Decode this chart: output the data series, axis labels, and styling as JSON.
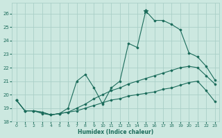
{
  "xlabel": "Humidex (Indice chaleur)",
  "bg_color": "#cce8e0",
  "grid_color": "#aacfc8",
  "line_color": "#1a6b5a",
  "xlim": [
    -0.5,
    23.5
  ],
  "ylim": [
    18,
    26.8
  ],
  "yticks": [
    18,
    19,
    20,
    21,
    22,
    23,
    24,
    25,
    26
  ],
  "xticks": [
    0,
    1,
    2,
    3,
    4,
    5,
    6,
    7,
    8,
    9,
    10,
    11,
    12,
    13,
    14,
    15,
    16,
    17,
    18,
    19,
    20,
    21,
    22,
    23
  ],
  "s1_x": [
    0,
    1,
    2,
    3,
    4,
    5,
    6,
    7,
    8,
    9,
    10,
    11,
    12,
    13,
    14,
    15,
    16,
    17,
    18,
    19,
    20,
    21,
    22,
    23
  ],
  "s1_y": [
    19.6,
    18.8,
    18.8,
    18.7,
    18.5,
    18.6,
    18.7,
    18.8,
    19.0,
    19.2,
    19.4,
    19.6,
    19.7,
    19.9,
    20.0,
    20.1,
    20.2,
    20.4,
    20.5,
    20.7,
    20.9,
    21.0,
    20.3,
    19.5
  ],
  "s2_x": [
    0,
    1,
    2,
    3,
    4,
    5,
    6,
    7,
    8,
    9,
    10,
    11,
    12,
    13,
    14,
    15,
    16,
    17,
    18,
    19,
    20,
    21,
    22,
    23
  ],
  "s2_y": [
    19.6,
    18.8,
    18.8,
    18.7,
    18.5,
    18.6,
    18.7,
    19.0,
    19.3,
    19.7,
    20.0,
    20.3,
    20.5,
    20.8,
    21.0,
    21.2,
    21.4,
    21.6,
    21.8,
    22.0,
    22.1,
    22.0,
    21.4,
    20.8
  ],
  "s3_x": [
    0,
    1,
    2,
    3,
    4,
    5,
    6,
    7,
    8,
    9,
    10,
    11,
    12,
    13,
    14,
    15,
    16,
    17,
    18,
    19,
    20,
    21,
    22,
    23
  ],
  "s3_y": [
    19.6,
    18.8,
    18.8,
    18.6,
    18.5,
    18.6,
    19.0,
    21.0,
    21.5,
    20.5,
    19.3,
    20.5,
    21.0,
    23.8,
    23.5,
    26.2,
    25.5,
    25.5,
    25.2,
    24.8,
    23.1,
    22.8,
    22.1,
    21.1
  ],
  "star_x": [
    15
  ],
  "star_y": [
    26.2
  ],
  "marker_x": [
    23
  ],
  "marker_y_s2": [
    20.8
  ],
  "marker_y_s1": [
    19.5
  ]
}
